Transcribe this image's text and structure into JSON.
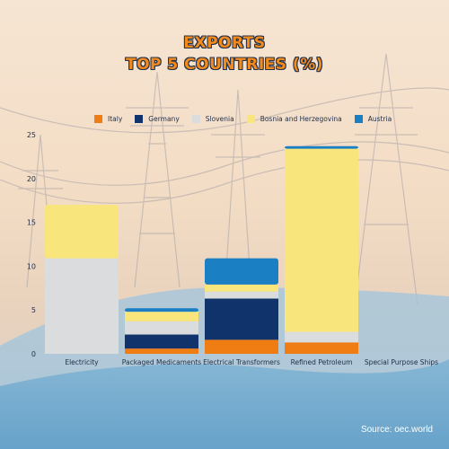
{
  "title_line1": "EXPORTS",
  "title_line2": "TOP 5 COUNTRIES (%)",
  "source": "Source: oec.world",
  "colors": {
    "Italy": "#f07c14",
    "Germany": "#10336b",
    "Slovenia": "#dadcdd",
    "Bosnia and Herzegovina": "#f8e67c",
    "Austria": "#1a7fc3"
  },
  "chart_data": {
    "type": "bar",
    "stacked": true,
    "categories": [
      "Electricity",
      "Packaged Medicaments",
      "Electrical Transformers",
      "Refined Petroleum",
      "Special Purpose Ships"
    ],
    "series": [
      {
        "name": "Italy",
        "values": [
          0,
          0.6,
          1.6,
          1.3,
          0
        ]
      },
      {
        "name": "Germany",
        "values": [
          0,
          1.6,
          4.7,
          0,
          0
        ]
      },
      {
        "name": "Slovenia",
        "values": [
          10.9,
          1.5,
          0.8,
          1.2,
          0
        ]
      },
      {
        "name": "Bosnia and Herzegovina",
        "values": [
          6.1,
          1.1,
          0.8,
          20.9,
          0
        ]
      },
      {
        "name": "Austria",
        "values": [
          0,
          0.4,
          3.0,
          0.3,
          0
        ]
      }
    ],
    "yticks": [
      "0",
      "5",
      "10",
      "15",
      "20",
      "25"
    ],
    "ylim": [
      0,
      25
    ],
    "grid": false,
    "legend": "top"
  }
}
